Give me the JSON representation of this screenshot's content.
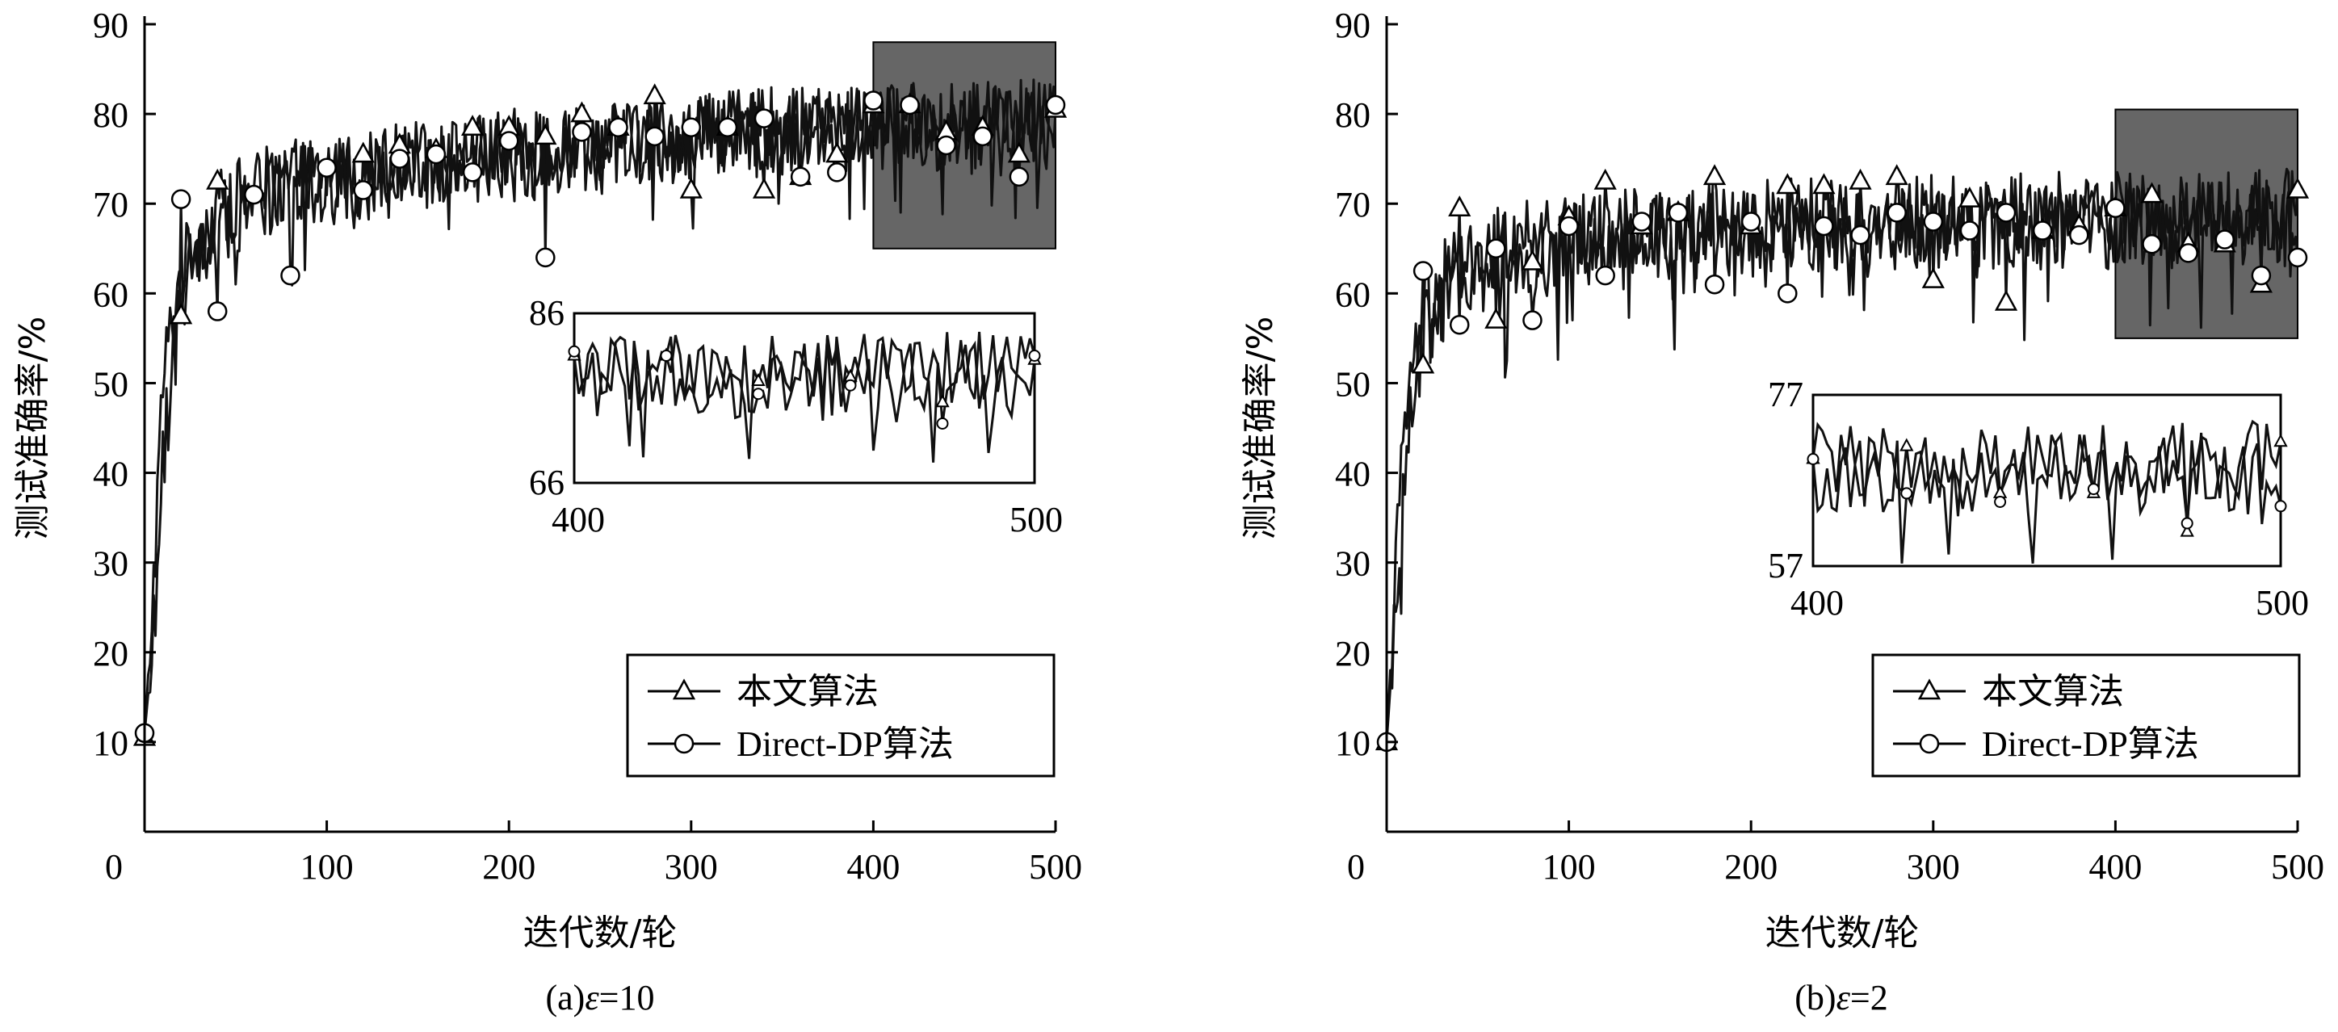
{
  "chart_data": [
    {
      "type": "line",
      "caption": "(a)ε=10",
      "xlabel": "迭代数/轮",
      "ylabel": "测试准确率/%",
      "xlim": [
        0,
        500
      ],
      "ylim": [
        0,
        90
      ],
      "xticks": [
        0,
        100,
        200,
        300,
        400,
        500
      ],
      "yticks": [
        10,
        20,
        30,
        40,
        50,
        60,
        70,
        80,
        90
      ],
      "grid": false,
      "legend": "bottom-right",
      "zoom_region": {
        "x": [
          400,
          500
        ],
        "y": [
          65,
          88
        ]
      },
      "inset": {
        "xlim": [
          400,
          500
        ],
        "ylim": [
          66,
          86
        ],
        "xticks": [
          400,
          500
        ],
        "yticks": [
          66,
          86
        ]
      },
      "series": [
        {
          "name": "本文算法",
          "marker": "triangle",
          "marker_x": [
            0,
            20,
            40,
            120,
            140,
            160,
            180,
            200,
            220,
            240,
            260,
            280,
            300,
            320,
            340,
            360,
            380,
            400,
            420,
            440,
            460,
            480,
            500
          ],
          "marker_y": [
            10.5,
            57.5,
            72.5,
            75.5,
            76.5,
            76.0,
            78.5,
            78.5,
            77.5,
            80.0,
            78.5,
            82.0,
            71.5,
            78.5,
            71.5,
            73.0,
            75.5,
            81.0,
            81.0,
            78.0,
            78.5,
            75.5,
            80.5
          ],
          "x": [
            0,
            5,
            10,
            15,
            20,
            25,
            30,
            40,
            50,
            60,
            70,
            80,
            100,
            120,
            140,
            160,
            180,
            200,
            220,
            240,
            260,
            280,
            300,
            320,
            340,
            360,
            380,
            400,
            420,
            440,
            460,
            480,
            500
          ],
          "y": [
            10.5,
            28.0,
            50.0,
            57.0,
            62.0,
            64.5,
            66.5,
            69.0,
            70.5,
            71.5,
            72.0,
            72.5,
            73.5,
            74.0,
            74.5,
            75.0,
            75.5,
            76.0,
            76.5,
            76.8,
            77.2,
            77.5,
            77.8,
            78.0,
            78.2,
            78.4,
            78.6,
            78.8,
            79.0,
            79.0,
            79.2,
            79.3,
            79.5
          ],
          "noise": 4.5
        },
        {
          "name": "Direct-DP算法",
          "marker": "circle",
          "marker_x": [
            0,
            20,
            40,
            60,
            80,
            100,
            120,
            140,
            160,
            180,
            200,
            220,
            240,
            260,
            280,
            300,
            320,
            340,
            360,
            380,
            400,
            420,
            440,
            460,
            480,
            500
          ],
          "marker_y": [
            11.0,
            70.5,
            58.0,
            71.0,
            62.0,
            74.0,
            71.5,
            75.0,
            75.5,
            73.5,
            77.0,
            64.0,
            78.0,
            78.5,
            77.5,
            78.5,
            78.5,
            79.5,
            73.0,
            73.5,
            81.5,
            81.0,
            76.5,
            77.5,
            73.0,
            81.0
          ],
          "x": [
            0,
            5,
            10,
            15,
            20,
            25,
            30,
            40,
            50,
            60,
            70,
            80,
            100,
            120,
            140,
            160,
            180,
            200,
            220,
            240,
            260,
            280,
            300,
            320,
            340,
            360,
            380,
            400,
            420,
            440,
            460,
            480,
            500
          ],
          "y": [
            11.0,
            22.0,
            40.0,
            52.0,
            59.0,
            63.0,
            65.5,
            68.0,
            69.5,
            70.5,
            71.0,
            71.5,
            72.5,
            73.0,
            73.5,
            74.0,
            74.5,
            75.0,
            75.5,
            76.0,
            76.5,
            77.0,
            77.5,
            77.8,
            78.0,
            78.2,
            78.4,
            78.6,
            78.6,
            78.6,
            78.6,
            78.6,
            78.6
          ],
          "noise": 5.0
        }
      ]
    },
    {
      "type": "line",
      "caption": "(b)ε=2",
      "xlabel": "迭代数/轮",
      "ylabel": "测试准确率/%",
      "xlim": [
        0,
        500
      ],
      "ylim": [
        0,
        90
      ],
      "xticks": [
        0,
        100,
        200,
        300,
        400,
        500
      ],
      "yticks": [
        10,
        20,
        30,
        40,
        50,
        60,
        70,
        80,
        90
      ],
      "grid": false,
      "legend": "bottom-right",
      "zoom_region": {
        "x": [
          400,
          500
        ],
        "y": [
          55,
          80.5
        ]
      },
      "inset": {
        "xlim": [
          400,
          500
        ],
        "ylim": [
          57,
          77
        ],
        "xticks": [
          400,
          500
        ],
        "yticks": [
          57,
          77
        ]
      },
      "series": [
        {
          "name": "本文算法",
          "marker": "triangle",
          "marker_x": [
            0,
            20,
            40,
            60,
            80,
            100,
            120,
            140,
            160,
            180,
            200,
            220,
            240,
            260,
            280,
            300,
            320,
            340,
            360,
            380,
            400,
            420,
            440,
            460,
            480,
            500
          ],
          "marker_y": [
            10.0,
            52.0,
            69.5,
            57.0,
            63.5,
            68.5,
            72.5,
            67.5,
            69.0,
            73.0,
            67.5,
            72.0,
            72.0,
            72.5,
            73.0,
            61.5,
            70.5,
            59.0,
            67.0,
            67.5,
            69.5,
            71.0,
            65.5,
            65.5,
            61.0,
            71.5
          ],
          "x": [
            0,
            5,
            10,
            15,
            20,
            25,
            30,
            40,
            50,
            60,
            70,
            80,
            100,
            120,
            140,
            160,
            180,
            200,
            220,
            240,
            260,
            280,
            300,
            320,
            340,
            360,
            380,
            400,
            420,
            440,
            460,
            480,
            500
          ],
          "y": [
            10.0,
            30.0,
            45.0,
            53.0,
            57.5,
            60.0,
            61.5,
            63.0,
            64.0,
            65.0,
            65.5,
            66.0,
            66.5,
            67.0,
            67.5,
            67.8,
            68.0,
            68.2,
            68.4,
            68.5,
            68.6,
            68.7,
            68.8,
            68.9,
            69.0,
            69.1,
            69.2,
            69.2,
            69.3,
            69.3,
            69.4,
            69.4,
            69.5
          ],
          "noise": 4.5
        },
        {
          "name": "Direct-DP算法",
          "marker": "circle",
          "marker_x": [
            0,
            20,
            40,
            60,
            80,
            100,
            120,
            140,
            160,
            180,
            200,
            220,
            240,
            260,
            280,
            300,
            320,
            340,
            360,
            380,
            400,
            420,
            440,
            460,
            480,
            500
          ],
          "marker_y": [
            10.0,
            62.5,
            56.5,
            65.0,
            57.0,
            67.5,
            62.0,
            68.0,
            69.0,
            61.0,
            68.0,
            60.0,
            67.5,
            66.5,
            69.0,
            68.0,
            67.0,
            69.0,
            67.0,
            66.5,
            69.5,
            65.5,
            64.5,
            66.0,
            62.0,
            64.0
          ],
          "x": [
            0,
            5,
            10,
            15,
            20,
            25,
            30,
            40,
            50,
            60,
            70,
            80,
            100,
            120,
            140,
            160,
            180,
            200,
            220,
            240,
            260,
            280,
            300,
            320,
            340,
            360,
            380,
            400,
            420,
            440,
            460,
            480,
            500
          ],
          "y": [
            10.0,
            25.0,
            40.0,
            49.0,
            54.5,
            57.5,
            59.5,
            61.5,
            62.5,
            63.5,
            64.0,
            64.5,
            65.0,
            65.5,
            66.0,
            66.3,
            66.6,
            66.8,
            67.0,
            67.1,
            67.2,
            67.3,
            67.4,
            67.5,
            67.6,
            67.6,
            67.7,
            67.7,
            67.8,
            67.8,
            67.8,
            67.8,
            67.8
          ],
          "noise": 5.0
        }
      ]
    }
  ]
}
